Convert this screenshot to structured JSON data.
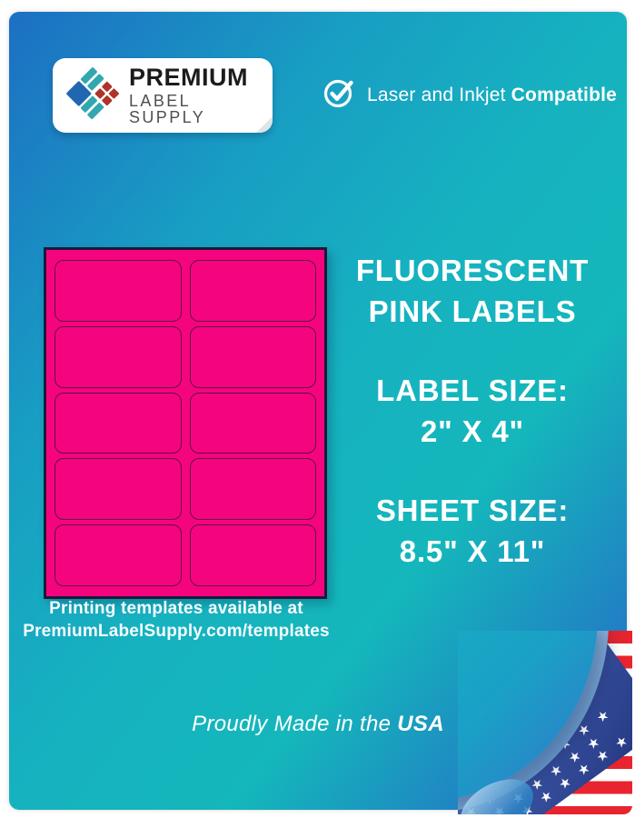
{
  "brand": {
    "line1": "PREMIUM",
    "line2": "LABEL SUPPLY"
  },
  "compatibility": {
    "regular": "Laser and Inkjet ",
    "bold": "Compatible"
  },
  "headline": {
    "line1": "FLUORESCENT",
    "line2": "PINK LABELS"
  },
  "specs": {
    "label_size_title": "LABEL SIZE:",
    "label_size_value": "2\" X 4\"",
    "sheet_size_title": "SHEET SIZE:",
    "sheet_size_value": "8.5\" X 11\""
  },
  "templates_note": {
    "line1": "Printing templates available at",
    "line2": "PremiumLabelSupply.com/templates"
  },
  "footer": {
    "made_in_regular": "Proudly Made in the ",
    "made_in_bold": "USA"
  },
  "sheet": {
    "rows": 5,
    "columns": 2,
    "labels_per_sheet": 10
  },
  "colors": {
    "card_gradient_start": "#1D6FC3",
    "card_gradient_mid": "#16B2C0",
    "card_gradient_end": "#2F7CC5",
    "label_pink": "#F5047F",
    "sheet_border": "#1A1A38",
    "label_outline": "#5F0F45",
    "flag_red": "#E8242F",
    "flag_star_blue": "#22367E",
    "logo_blue": "#2166B0",
    "logo_teal": "#31A7AE",
    "logo_red": "#AE3329",
    "text_white": "#FFFFFF"
  },
  "icons": {
    "logo": "premium-label-supply-diamond",
    "compatibility": "check-circle",
    "corner": "us-flag-page-curl"
  }
}
